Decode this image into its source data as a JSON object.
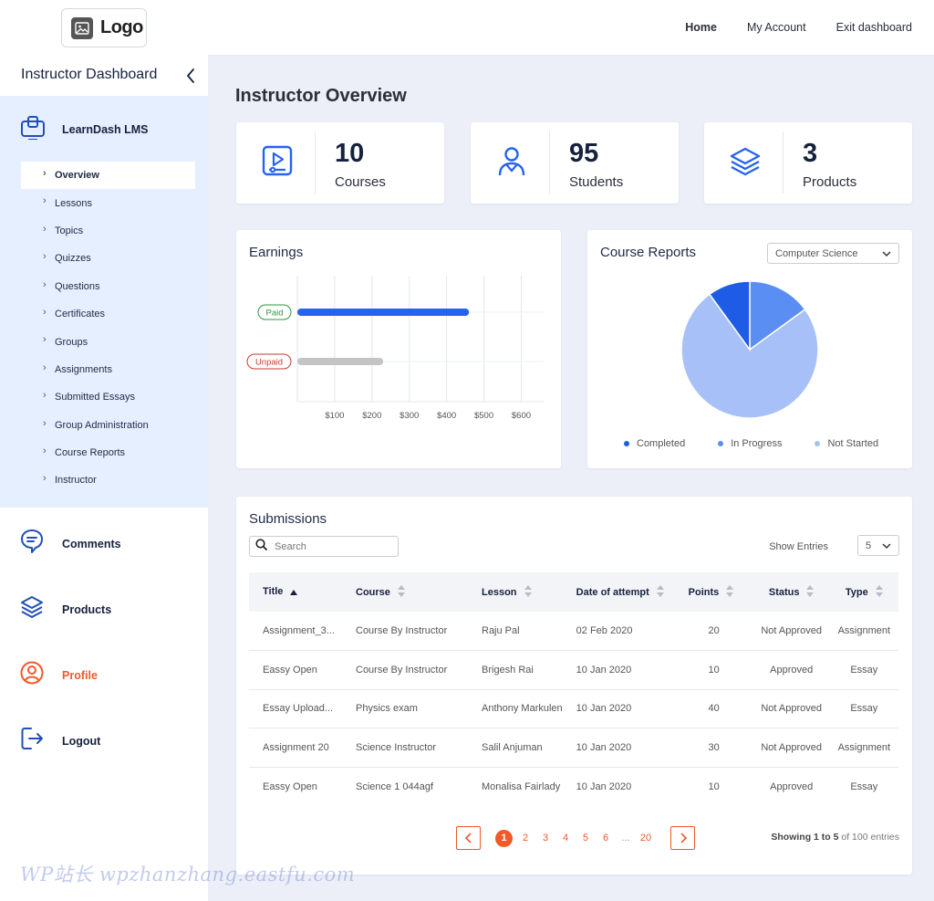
{
  "logo": {
    "text": "Logo"
  },
  "sidebar": {
    "title": "Instructor Dashboard",
    "lms_label": "LearnDash LMS",
    "items": [
      "Overview",
      "Lessons",
      "Topics",
      "Quizzes",
      "Questions",
      "Certificates",
      "Groups",
      "Assignments",
      "Submitted Essays",
      "Group Administration",
      "Course Reports",
      "Instructor"
    ],
    "active_item": "Overview",
    "links": {
      "comments": "Comments",
      "products": "Products",
      "profile": "Profile",
      "logout": "Logout"
    }
  },
  "topnav": {
    "home": "Home",
    "account": "My Account",
    "exit": "Exit dashboard"
  },
  "page_title": "Instructor Overview",
  "stats": {
    "courses": {
      "value": "10",
      "label": "Courses"
    },
    "students": {
      "value": "95",
      "label": "Students"
    },
    "products": {
      "value": "3",
      "label": "Products"
    }
  },
  "earnings": {
    "title": "Earnings",
    "paid_label": "Paid",
    "unpaid_label": "Unpaid",
    "ticks": [
      "$100",
      "$200",
      "$300",
      "$400",
      "$500",
      "$600"
    ]
  },
  "course_reports": {
    "title": "Course Reports",
    "filter_value": "Computer Science",
    "legend": {
      "completed": "Completed",
      "in_progress": "In Progress",
      "not_started": "Not Started"
    }
  },
  "chart_data": [
    {
      "type": "bar",
      "orientation": "horizontal",
      "title": "Earnings",
      "categories": [
        "Paid",
        "Unpaid"
      ],
      "values": [
        460,
        230
      ],
      "xlim": [
        0,
        660
      ],
      "tick_labels": [
        "$100",
        "$200",
        "$300",
        "$400",
        "$500",
        "$600"
      ],
      "colors": [
        "#2563f0",
        "#c4c4c4"
      ],
      "grid": true
    },
    {
      "type": "pie",
      "title": "Course Reports",
      "labels": [
        "Completed",
        "In Progress",
        "Not Started"
      ],
      "values": [
        10,
        15,
        75
      ],
      "colors": [
        "#1f5ce6",
        "#5b8ef2",
        "#a7c1f8"
      ],
      "legend": "bottom"
    }
  ],
  "submissions": {
    "title": "Submissions",
    "search_placeholder": "Search",
    "show_entries_label": "Show Entries",
    "entries_value": "5",
    "columns": [
      "Title",
      "Course",
      "Lesson",
      "Date of attempt",
      "Points",
      "Status",
      "Type"
    ],
    "rows": [
      [
        "Assignment_3...",
        "Course By Instructor",
        "Raju Pal",
        "02 Feb 2020",
        "20",
        "Not Approved",
        "Assignment"
      ],
      [
        "Eassy Open",
        "Course By Instructor",
        "Brigesh Rai",
        "10 Jan 2020",
        "10",
        "Approved",
        "Essay"
      ],
      [
        "Essay Upload...",
        "Physics exam",
        "Anthony Markulen",
        "10 Jan 2020",
        "40",
        "Not Approved",
        "Essay"
      ],
      [
        "Assignment 20",
        "Science Instructor",
        "Salil Anjuman",
        "10 Jan 2020",
        "30",
        "Not Approved",
        "Assignment"
      ],
      [
        "Eassy Open",
        "Science 1 044agf",
        "Monalisa Fairlady",
        "10 Jan 2020",
        "10",
        "Approved",
        "Essay"
      ]
    ],
    "pages": [
      "1",
      "2",
      "3",
      "4",
      "5",
      "6",
      "...",
      "20"
    ],
    "current_page": "1",
    "showing_prefix": "Showing 1 to 5",
    "showing_suffix": " of 100 entries"
  },
  "watermark": "WP站长  wpzhanzhang.eastfu.com",
  "colors": {
    "primary": "#2563f0",
    "accent": "#f05a28",
    "navy": "#16213e",
    "sidebar_bg": "#e6efff"
  }
}
